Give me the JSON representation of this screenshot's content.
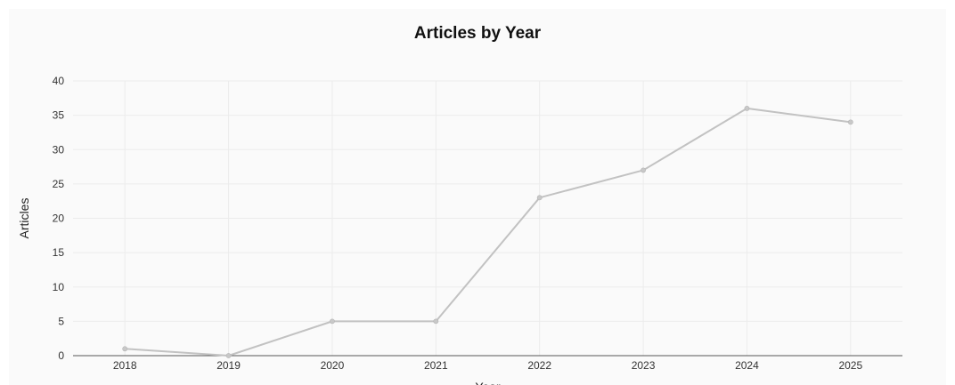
{
  "chart_data": {
    "type": "line",
    "title": "Articles by Year",
    "xlabel": "Year",
    "ylabel": "Articles",
    "categories": [
      "2018",
      "2019",
      "2020",
      "2021",
      "2022",
      "2023",
      "2024",
      "2025"
    ],
    "series": [
      {
        "values": [
          1,
          0,
          5,
          5,
          23,
          27,
          36,
          34
        ]
      }
    ],
    "ylim": [
      0,
      40
    ],
    "yticks": [
      0,
      5,
      10,
      15,
      20,
      25,
      30,
      35,
      40
    ],
    "grid": true,
    "legend": "none",
    "colors": {
      "line": "#c2c2c2",
      "marker": "#c8c8c8",
      "grid": "#ececec",
      "axis": "#555555",
      "background": "#fafafa"
    }
  }
}
